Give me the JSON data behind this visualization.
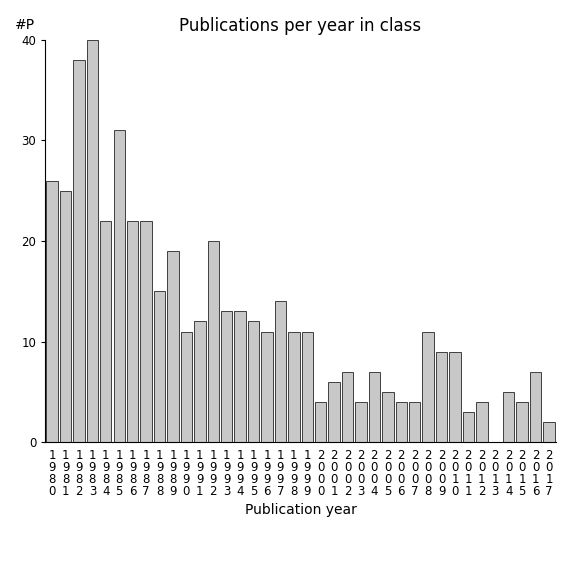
{
  "title": "Publications per year in class",
  "xlabel": "Publication year",
  "ylabel": "#P",
  "years": [
    "1980",
    "1981",
    "1982",
    "1983",
    "1984",
    "1985",
    "1986",
    "1987",
    "1988",
    "1989",
    "1990",
    "1991",
    "1992",
    "1993",
    "1994",
    "1995",
    "1996",
    "1997",
    "1998",
    "1999",
    "2000",
    "2001",
    "2002",
    "2003",
    "2004",
    "2005",
    "2006",
    "2007",
    "2008",
    "2009",
    "2010",
    "2011",
    "2012",
    "2013",
    "2014",
    "2015",
    "2016",
    "2017"
  ],
  "values": [
    26,
    25,
    38,
    40,
    22,
    31,
    22,
    22,
    15,
    19,
    11,
    12,
    20,
    13,
    13,
    12,
    11,
    14,
    11,
    11,
    4,
    6,
    7,
    4,
    7,
    5,
    4,
    4,
    11,
    9,
    9,
    3,
    4,
    0,
    5,
    4,
    7,
    2
  ],
  "bar_color": "#c8c8c8",
  "bar_edge_color": "#000000",
  "bar_edge_width": 0.5,
  "ylim": [
    0,
    40
  ],
  "yticks": [
    0,
    10,
    20,
    30,
    40
  ],
  "title_fontsize": 12,
  "axis_label_fontsize": 10,
  "tick_fontsize": 8.5,
  "background_color": "#ffffff"
}
